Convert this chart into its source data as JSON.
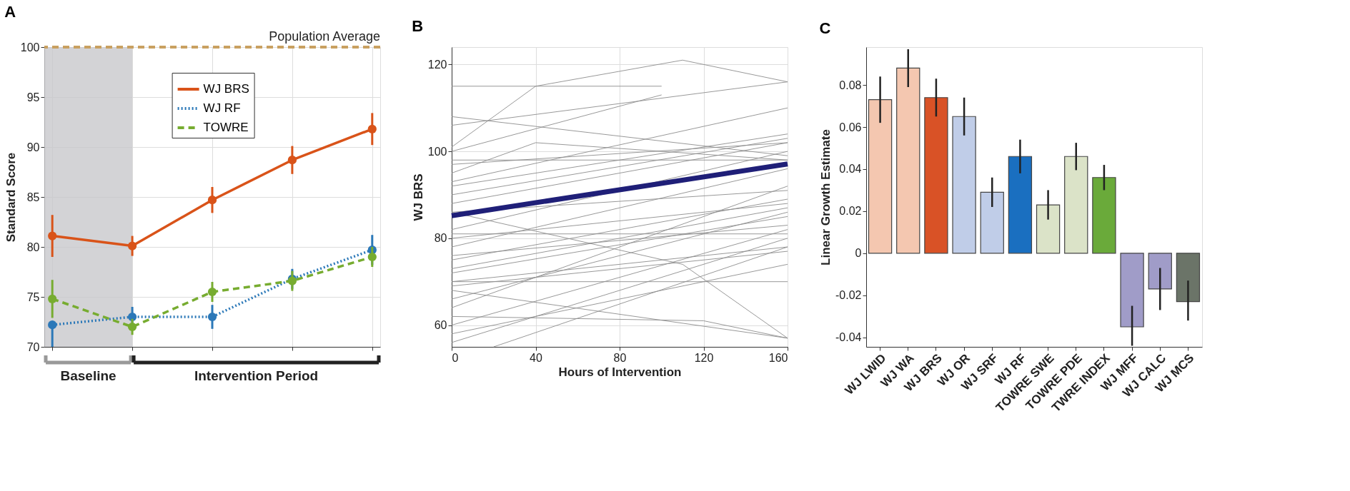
{
  "chart_data": [
    {
      "type": "line",
      "title": "A",
      "ylabel": "Standard Score",
      "categories": [
        null,
        null,
        null,
        null,
        null
      ],
      "ylim": [
        70,
        100
      ],
      "yticks": [
        70,
        75,
        80,
        85,
        90,
        95,
        100
      ],
      "grid": true,
      "legend": "top",
      "marker": "circle",
      "series": [
        {
          "name": "WJ BRS",
          "color": "#d95319",
          "line_style": "solid",
          "values": [
            81.1,
            80.1,
            84.7,
            88.7,
            91.8
          ],
          "errors": [
            2.1,
            1.0,
            1.3,
            1.4,
            1.6
          ]
        },
        {
          "name": "WJ RF",
          "color": "#2b78b8",
          "line_style": "dotted",
          "values": [
            72.2,
            73.0,
            73.0,
            76.8,
            79.7
          ],
          "errors": [
            [
              70,
              72.2
            ],
            1.0,
            1.2,
            1.0,
            1.5
          ]
        },
        {
          "name": "TOWRE",
          "color": "#77ac30",
          "line_style": "dashed",
          "values": [
            74.8,
            72.0,
            75.5,
            76.6,
            79.0
          ],
          "errors": [
            1.9,
            0.8,
            1.0,
            1.0,
            1.0
          ]
        }
      ],
      "ref_lines": [
        {
          "axis": "y",
          "value": 100,
          "label": "Population Average",
          "color": "#c9a060",
          "line_style": "dashed"
        }
      ],
      "annotations": [
        "Baseline",
        "Intervention Period"
      ]
    },
    {
      "type": "line",
      "title": "B",
      "xlabel": "Hours of Intervention",
      "ylabel": "WJ BRS",
      "xlim": [
        0,
        160
      ],
      "xticks": [
        0,
        40,
        80,
        120,
        160
      ],
      "ylim": [
        55,
        124
      ],
      "yticks": [
        60,
        80,
        100,
        120
      ],
      "grid": true,
      "series": [
        {
          "color": "#8c8c8c",
          "x": [
            0,
            100
          ],
          "values": [
            115,
            115
          ]
        },
        {
          "color": "#8c8c8c",
          "x": [
            0,
            40,
            110,
            160
          ],
          "values": [
            101,
            115,
            121,
            116
          ]
        },
        {
          "color": "#8c8c8c",
          "x": [
            0,
            160
          ],
          "values": [
            106,
            116
          ]
        },
        {
          "color": "#8c8c8c",
          "x": [
            0,
            100
          ],
          "values": [
            100,
            113
          ]
        },
        {
          "color": "#8c8c8c",
          "x": [
            0,
            160
          ],
          "values": [
            108,
            99
          ]
        },
        {
          "color": "#8c8c8c",
          "x": [
            0,
            160
          ],
          "values": [
            93,
            110
          ]
        },
        {
          "color": "#8c8c8c",
          "x": [
            0,
            160
          ],
          "values": [
            92,
            104
          ]
        },
        {
          "color": "#8c8c8c",
          "x": [
            0,
            160
          ],
          "values": [
            90,
            103
          ]
        },
        {
          "color": "#8c8c8c",
          "x": [
            0,
            160
          ],
          "values": [
            97,
            102
          ]
        },
        {
          "color": "#8c8c8c",
          "x": [
            0,
            160
          ],
          "values": [
            98,
            98
          ]
        },
        {
          "color": "#8c8c8c",
          "x": [
            0,
            160
          ],
          "values": [
            88,
            102
          ]
        },
        {
          "color": "#8c8c8c",
          "x": [
            0,
            40,
            160
          ],
          "values": [
            95,
            102,
            98
          ]
        },
        {
          "color": "#8c8c8c",
          "x": [
            0,
            160
          ],
          "values": [
            86,
            91
          ]
        },
        {
          "color": "#8c8c8c",
          "x": [
            0,
            160
          ],
          "values": [
            82,
            100
          ]
        },
        {
          "color": "#8c8c8c",
          "x": [
            0,
            160
          ],
          "values": [
            80,
            88
          ]
        },
        {
          "color": "#8c8c8c",
          "x": [
            0,
            160
          ],
          "values": [
            78,
            96
          ]
        },
        {
          "color": "#8c8c8c",
          "x": [
            0,
            160
          ],
          "values": [
            75,
            89
          ]
        },
        {
          "color": "#8c8c8c",
          "x": [
            0,
            160
          ],
          "values": [
            81,
            81
          ]
        },
        {
          "color": "#8c8c8c",
          "x": [
            0,
            160
          ],
          "values": [
            73,
            87
          ]
        },
        {
          "color": "#8c8c8c",
          "x": [
            0,
            160
          ],
          "values": [
            76,
            83
          ]
        },
        {
          "color": "#8c8c8c",
          "x": [
            0,
            160
          ],
          "values": [
            70,
            78
          ]
        },
        {
          "color": "#8c8c8c",
          "x": [
            0,
            160
          ],
          "values": [
            72,
            85
          ]
        },
        {
          "color": "#8c8c8c",
          "x": [
            0,
            160
          ],
          "values": [
            69,
            77
          ]
        },
        {
          "color": "#8c8c8c",
          "x": [
            0,
            160
          ],
          "values": [
            66,
            86
          ]
        },
        {
          "color": "#8c8c8c",
          "x": [
            0,
            160
          ],
          "values": [
            60,
            82
          ]
        },
        {
          "color": "#8c8c8c",
          "x": [
            0,
            160
          ],
          "values": [
            58,
            74
          ]
        },
        {
          "color": "#8c8c8c",
          "x": [
            0,
            160
          ],
          "values": [
            56,
            80
          ]
        },
        {
          "color": "#8c8c8c",
          "x": [
            0,
            160
          ],
          "values": [
            68,
            57
          ]
        },
        {
          "color": "#8c8c8c",
          "x": [
            0,
            120,
            160
          ],
          "values": [
            62,
            61,
            57
          ]
        },
        {
          "color": "#8c8c8c",
          "x": [
            0,
            160
          ],
          "values": [
            70,
            70
          ]
        },
        {
          "color": "#8c8c8c",
          "x": [
            0,
            110,
            160
          ],
          "values": [
            86,
            74,
            57
          ]
        },
        {
          "color": "#8c8c8c",
          "x": [
            20,
            160
          ],
          "values": [
            55,
            78
          ]
        },
        {
          "color": "#8c8c8c",
          "x": [
            0,
            160
          ],
          "values": [
            64,
            92
          ]
        },
        {
          "type": "line",
          "color": "#1f1f78",
          "x": [
            0,
            160
          ],
          "values": [
            85.2,
            97.1
          ]
        }
      ]
    },
    {
      "type": "bar",
      "title": "C",
      "ylabel": "Linear Growth Estimate",
      "categories": [
        "WJ LWID",
        "WJ WA",
        "WJ BRS",
        "WJ OR",
        "WJ SRF",
        "WJ RF",
        "TOWRE SWE",
        "TOWRE PDE",
        "TWRE INDEX",
        "WJ MFF",
        "WJ CALC",
        "WJ MCS"
      ],
      "values": [
        0.073,
        0.088,
        0.074,
        0.065,
        0.029,
        0.046,
        0.023,
        0.046,
        0.036,
        -0.035,
        -0.017,
        -0.023
      ],
      "errors": [
        0.011,
        0.009,
        0.009,
        0.009,
        0.007,
        0.008,
        0.007,
        0.0065,
        0.006,
        [
          -0.044,
          -0.025
        ],
        [
          -0.027,
          -0.007
        ],
        [
          -0.032,
          -0.013
        ]
      ],
      "colors": [
        "#f4c7b0",
        "#f4c7b0",
        "#d95226",
        "#c0cde8",
        "#c0cde8",
        "#1a6fc0",
        "#dbe3c8",
        "#dbe3c8",
        "#6aaa3a",
        "#a09cc8",
        "#a09cc8",
        "#6b7468"
      ],
      "ylim": [
        -0.0445,
        0.098
      ],
      "yticks": [
        -0.04,
        -0.02,
        0,
        0.02,
        0.04,
        0.06,
        0.08
      ],
      "grid": false
    }
  ]
}
